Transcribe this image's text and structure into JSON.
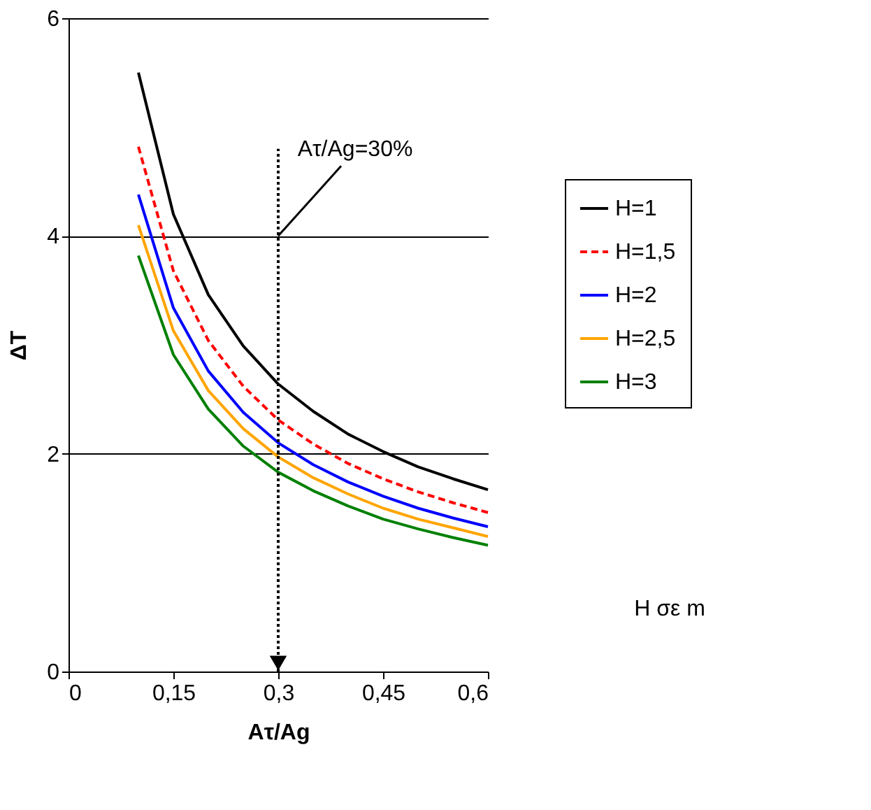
{
  "chart_data": {
    "type": "line",
    "xlabel": "Aτ/Ag",
    "ylabel": "ΔT",
    "x": [
      0.1,
      0.15,
      0.2,
      0.25,
      0.3,
      0.35,
      0.4,
      0.45,
      0.5,
      0.55,
      0.6
    ],
    "series": [
      {
        "name": "H=1",
        "color": "#000000",
        "line_style": "solid",
        "values": [
          5.5,
          4.2,
          3.46,
          2.99,
          2.64,
          2.39,
          2.18,
          2.02,
          1.88,
          1.77,
          1.67
        ]
      },
      {
        "name": "H=1,5",
        "color": "#ff0000",
        "line_style": "dashed",
        "values": [
          4.82,
          3.68,
          3.04,
          2.62,
          2.31,
          2.09,
          1.91,
          1.77,
          1.65,
          1.55,
          1.46
        ]
      },
      {
        "name": "H=2",
        "color": "#0000ff",
        "line_style": "solid",
        "values": [
          4.38,
          3.34,
          2.76,
          2.38,
          2.1,
          1.9,
          1.74,
          1.61,
          1.5,
          1.41,
          1.33
        ]
      },
      {
        "name": "H=2,5",
        "color": "#ffa500",
        "line_style": "solid",
        "values": [
          4.1,
          3.13,
          2.58,
          2.23,
          1.97,
          1.78,
          1.63,
          1.5,
          1.4,
          1.32,
          1.24
        ]
      },
      {
        "name": "H=3",
        "color": "#008000",
        "line_style": "solid",
        "values": [
          3.82,
          2.91,
          2.41,
          2.07,
          1.83,
          1.66,
          1.52,
          1.4,
          1.31,
          1.23,
          1.16
        ]
      }
    ],
    "xlim": [
      0,
      0.6
    ],
    "ylim": [
      0,
      6
    ],
    "xticks": [
      0,
      {
        "value": 0.15,
        "label": "0,15"
      },
      {
        "value": 0.3,
        "label": "0,3"
      },
      {
        "value": 0.45,
        "label": "0,45"
      },
      {
        "value": 0.6,
        "label": "0,6"
      }
    ],
    "yticks": [
      0,
      2,
      4,
      6
    ],
    "grid": "y",
    "legend": "right",
    "ref_lines": [
      {
        "axis": "x",
        "value": 0.3,
        "line_style": "dotted",
        "color": "#000000"
      }
    ],
    "annotations": [
      {
        "text": "Aτ/Ag=30%",
        "x": 0.3,
        "y": 4
      },
      "H σε m"
    ]
  }
}
